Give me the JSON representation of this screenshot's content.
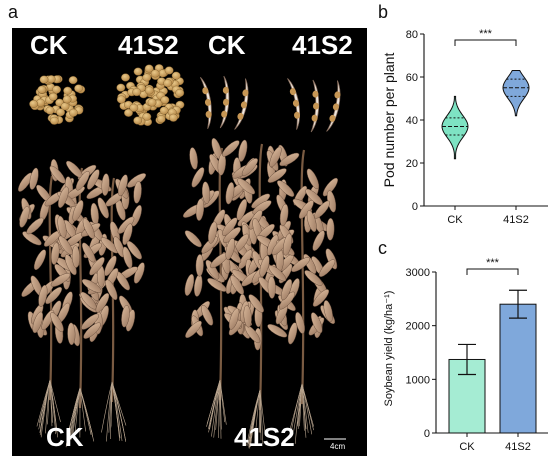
{
  "panels": {
    "a": {
      "letter": "a",
      "labels": {
        "top_left": "CK",
        "top_mid": "41S2",
        "top_mid2": "CK",
        "top_right": "41S2",
        "bottom_left": "CK",
        "bottom_right": "41S2"
      },
      "scale_bar": "4cm"
    },
    "b": {
      "letter": "b"
    },
    "c": {
      "letter": "c"
    }
  },
  "chart_data": [
    {
      "type": "violin",
      "panel": "b",
      "ylabel": "Pod number per plant",
      "categories": [
        "CK",
        "41S2"
      ],
      "ylim": [
        0,
        80
      ],
      "yticks": [
        0,
        20,
        40,
        60,
        80
      ],
      "series": [
        {
          "category": "CK",
          "min": 22,
          "q1": 33,
          "median": 37,
          "q3": 41,
          "max": 51,
          "color": "#7ee3c3"
        },
        {
          "category": "41S2",
          "min": 42,
          "q1": 51,
          "median": 55,
          "q3": 59,
          "max": 63,
          "color": "#7fa8db"
        }
      ],
      "significance": "***"
    },
    {
      "type": "bar",
      "panel": "c",
      "ylabel": "Soybean yield (kg/ha⁻¹)",
      "categories": [
        "CK",
        "41S2"
      ],
      "values": [
        1370,
        2400
      ],
      "errors": [
        280,
        260
      ],
      "colors": [
        "#a5ecd3",
        "#7fa8db"
      ],
      "ylim": [
        0,
        3000
      ],
      "yticks": [
        0,
        1000,
        2000,
        3000
      ],
      "significance": "***"
    }
  ]
}
